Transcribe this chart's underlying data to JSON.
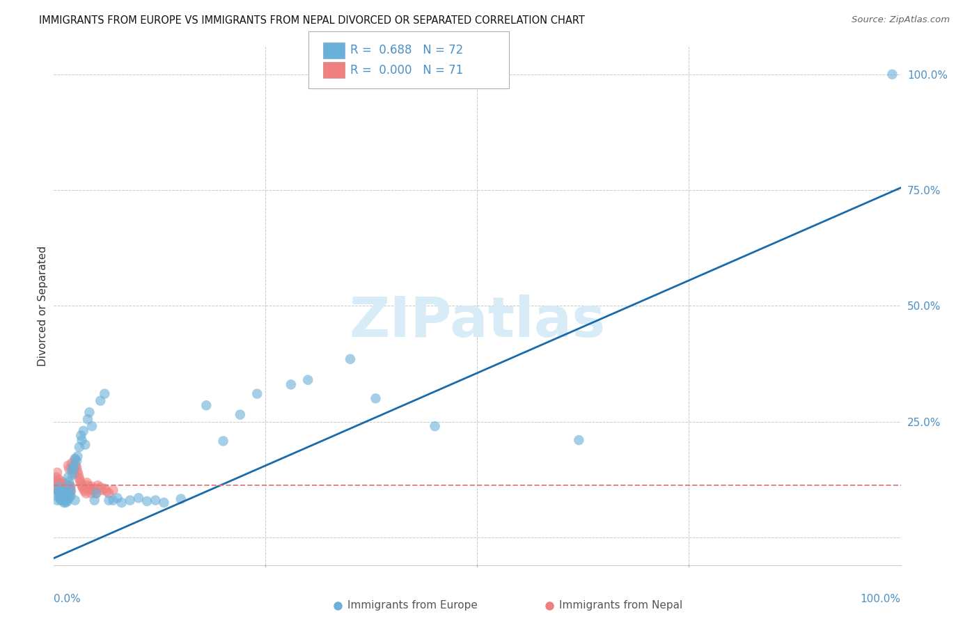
{
  "title": "IMMIGRANTS FROM EUROPE VS IMMIGRANTS FROM NEPAL DIVORCED OR SEPARATED CORRELATION CHART",
  "source": "Source: ZipAtlas.com",
  "ylabel": "Divorced or Separated",
  "legend_europe": "Immigrants from Europe",
  "legend_nepal": "Immigrants from Nepal",
  "R_europe": 0.688,
  "N_europe": 72,
  "R_nepal": 0.0,
  "N_nepal": 71,
  "europe_color": "#6ab0d8",
  "nepal_color": "#f08080",
  "trend_europe_color": "#1a6aaa",
  "trend_nepal_color": "#d87878",
  "background_color": "#ffffff",
  "grid_color": "#c8c8c8",
  "watermark_color": "#d8ecf8",
  "right_tick_color": "#4a90c8",
  "bottom_tick_color": "#4a90c8",
  "title_fontsize": 10.5,
  "source_fontsize": 9.5,
  "axis_fontsize": 11,
  "legend_fontsize": 12,
  "watermark_fontsize": 58,
  "europe_x": [
    0.003,
    0.004,
    0.005,
    0.006,
    0.006,
    0.007,
    0.007,
    0.008,
    0.008,
    0.009,
    0.009,
    0.01,
    0.01,
    0.011,
    0.011,
    0.012,
    0.012,
    0.013,
    0.013,
    0.014,
    0.014,
    0.015,
    0.015,
    0.016,
    0.016,
    0.017,
    0.018,
    0.018,
    0.019,
    0.02,
    0.02,
    0.021,
    0.022,
    0.023,
    0.024,
    0.025,
    0.025,
    0.027,
    0.028,
    0.03,
    0.032,
    0.033,
    0.035,
    0.037,
    0.04,
    0.042,
    0.045,
    0.048,
    0.05,
    0.055,
    0.06,
    0.065,
    0.07,
    0.075,
    0.08,
    0.09,
    0.1,
    0.11,
    0.12,
    0.13,
    0.15,
    0.18,
    0.2,
    0.22,
    0.24,
    0.28,
    0.3,
    0.35,
    0.38,
    0.45,
    0.62,
    0.99
  ],
  "europe_y": [
    0.09,
    0.08,
    0.1,
    0.095,
    0.11,
    0.085,
    0.095,
    0.08,
    0.1,
    0.085,
    0.095,
    0.08,
    0.095,
    0.085,
    0.1,
    0.075,
    0.09,
    0.08,
    0.095,
    0.075,
    0.088,
    0.082,
    0.095,
    0.078,
    0.092,
    0.13,
    0.12,
    0.085,
    0.11,
    0.09,
    0.1,
    0.145,
    0.135,
    0.155,
    0.15,
    0.17,
    0.08,
    0.165,
    0.175,
    0.195,
    0.22,
    0.21,
    0.23,
    0.2,
    0.255,
    0.27,
    0.24,
    0.08,
    0.095,
    0.295,
    0.31,
    0.08,
    0.08,
    0.085,
    0.075,
    0.08,
    0.085,
    0.078,
    0.08,
    0.075,
    0.083,
    0.285,
    0.208,
    0.265,
    0.31,
    0.33,
    0.34,
    0.385,
    0.3,
    0.24,
    0.21,
    1.0
  ],
  "nepal_x": [
    0.001,
    0.002,
    0.002,
    0.003,
    0.003,
    0.004,
    0.004,
    0.005,
    0.005,
    0.006,
    0.006,
    0.007,
    0.007,
    0.008,
    0.008,
    0.009,
    0.009,
    0.01,
    0.01,
    0.011,
    0.011,
    0.012,
    0.012,
    0.013,
    0.013,
    0.014,
    0.014,
    0.015,
    0.015,
    0.016,
    0.016,
    0.017,
    0.018,
    0.018,
    0.019,
    0.019,
    0.02,
    0.02,
    0.021,
    0.022,
    0.023,
    0.024,
    0.025,
    0.026,
    0.027,
    0.028,
    0.029,
    0.03,
    0.031,
    0.032,
    0.033,
    0.034,
    0.035,
    0.036,
    0.038,
    0.039,
    0.04,
    0.042,
    0.043,
    0.044,
    0.045,
    0.047,
    0.048,
    0.05,
    0.052,
    0.055,
    0.057,
    0.06,
    0.062,
    0.065,
    0.07
  ],
  "nepal_y": [
    0.115,
    0.125,
    0.11,
    0.13,
    0.105,
    0.12,
    0.14,
    0.115,
    0.1,
    0.125,
    0.108,
    0.095,
    0.118,
    0.1,
    0.113,
    0.108,
    0.095,
    0.12,
    0.105,
    0.112,
    0.098,
    0.108,
    0.095,
    0.115,
    0.102,
    0.108,
    0.095,
    0.112,
    0.1,
    0.108,
    0.095,
    0.155,
    0.148,
    0.112,
    0.105,
    0.095,
    0.11,
    0.1,
    0.16,
    0.15,
    0.145,
    0.138,
    0.168,
    0.155,
    0.15,
    0.142,
    0.135,
    0.128,
    0.122,
    0.118,
    0.112,
    0.108,
    0.105,
    0.1,
    0.095,
    0.118,
    0.112,
    0.108,
    0.102,
    0.095,
    0.11,
    0.105,
    0.1,
    0.095,
    0.112,
    0.108,
    0.102,
    0.105,
    0.1,
    0.095,
    0.102
  ],
  "trend_europe_x0": 0.0,
  "trend_europe_y0": -0.045,
  "trend_europe_x1": 1.0,
  "trend_europe_y1": 0.755,
  "trend_nepal_y": 0.113,
  "xlim": [
    0.0,
    1.0
  ],
  "ylim": [
    -0.06,
    1.06
  ],
  "ytick_positions": [
    0.0,
    0.25,
    0.5,
    0.75,
    1.0
  ],
  "ytick_labels": [
    "",
    "25.0%",
    "50.0%",
    "75.0%",
    "100.0%"
  ],
  "xtick_positions": [
    0.0,
    0.25,
    0.5,
    0.75,
    1.0
  ]
}
